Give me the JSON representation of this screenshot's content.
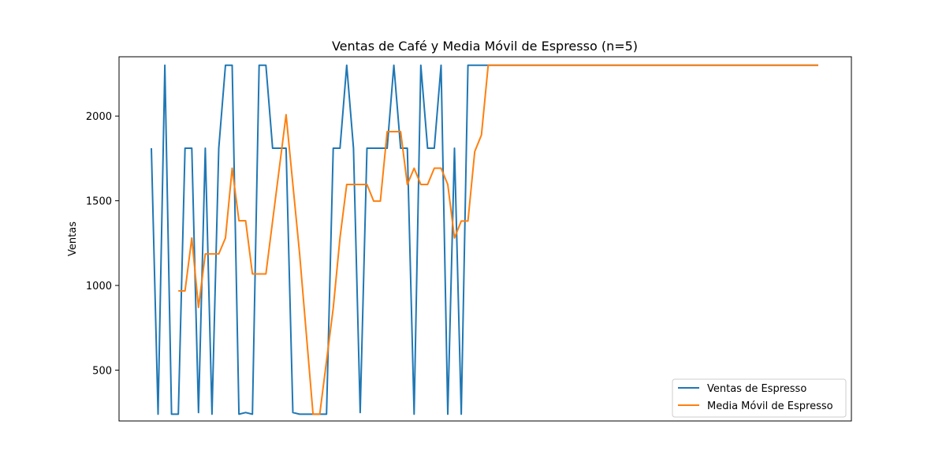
{
  "chart_data": {
    "type": "line",
    "title": "Ventas de Café y Media Móvil de Espresso (n=5)",
    "xlabel": "",
    "ylabel": "Ventas",
    "ylim": [
      200,
      2350
    ],
    "yticks": [
      500,
      1000,
      1500,
      2000
    ],
    "grid": false,
    "legend_position": "lower-right",
    "series": [
      {
        "name": "Ventas de Espresso",
        "color": "#1f77b4",
        "x": [
          0,
          1,
          2,
          3,
          4,
          5,
          6,
          7,
          8,
          9,
          10,
          11,
          12,
          13,
          14,
          15,
          16,
          17,
          18,
          19,
          20,
          21,
          22,
          23,
          24,
          25,
          26,
          27,
          28,
          29,
          30,
          31,
          32,
          33,
          34,
          35,
          36,
          37,
          38,
          39,
          40,
          41,
          42,
          43,
          44,
          45,
          46,
          47,
          48,
          49,
          50,
          51,
          52,
          53,
          54,
          55,
          56,
          57,
          58,
          59,
          60,
          61,
          62,
          63,
          64,
          65,
          66,
          67,
          68,
          69,
          70,
          71,
          72,
          73,
          74,
          75,
          76,
          77,
          78,
          79,
          80,
          81,
          82,
          83,
          84,
          85,
          86,
          87,
          88,
          89,
          90,
          91,
          92,
          93,
          94,
          95,
          96,
          97,
          98,
          99
        ],
        "values": [
          1810,
          240,
          2300,
          240,
          240,
          1810,
          1810,
          250,
          1810,
          240,
          1810,
          2300,
          2300,
          240,
          250,
          240,
          2300,
          2300,
          1810,
          1810,
          1810,
          250,
          240,
          240,
          240,
          240,
          240,
          1810,
          1810,
          2300,
          1810,
          250,
          1810,
          1810,
          1810,
          1810,
          2300,
          1810,
          1810,
          240,
          2300,
          1810,
          1810,
          2300,
          240,
          1810,
          240,
          2300,
          2300,
          2300,
          2300,
          2300,
          2300,
          2300,
          2300,
          2300,
          2300,
          2300,
          2300,
          2300,
          2300,
          2300,
          2300,
          2300,
          2300,
          2300,
          2300,
          2300,
          2300,
          2300,
          2300,
          2300,
          2300,
          2300,
          2300,
          2300,
          2300,
          2300,
          2300,
          2300,
          2300,
          2300,
          2300,
          2300,
          2300,
          2300,
          2300,
          2300,
          2300,
          2300,
          2300,
          2300,
          2300,
          2300,
          2300,
          2300,
          2300,
          2300,
          2300,
          2300
        ]
      },
      {
        "name": "Media Móvil de Espresso",
        "color": "#ff7f0e",
        "x": [
          4,
          5,
          6,
          7,
          8,
          9,
          10,
          11,
          12,
          13,
          14,
          15,
          16,
          17,
          20,
          22,
          24,
          25,
          27,
          28,
          29,
          30,
          31,
          32,
          33,
          34,
          35,
          36,
          37,
          38,
          39,
          40,
          41,
          42,
          43,
          44,
          45,
          46,
          47,
          48,
          49,
          50,
          51,
          52,
          53,
          54,
          55,
          56,
          57,
          58,
          59,
          60,
          61,
          62,
          63,
          64,
          65,
          66,
          67,
          68,
          69,
          70,
          71,
          72,
          73,
          74,
          75,
          76,
          77,
          78,
          79,
          80,
          81,
          82,
          83,
          84,
          85,
          86,
          87,
          88,
          89,
          90,
          91,
          92,
          93,
          94,
          95,
          96,
          97,
          98,
          99
        ],
        "values": [
          968,
          968,
          1280,
          870,
          1186,
          1186,
          1186,
          1280,
          1692,
          1382,
          1382,
          1068,
          1068,
          1068,
          2008,
          1190,
          240,
          240,
          866,
          1282,
          1596,
          1596,
          1596,
          1596,
          1498,
          1498,
          1908,
          1908,
          1908,
          1596,
          1692,
          1596,
          1596,
          1692,
          1692,
          1596,
          1280,
          1380,
          1380,
          1790,
          1888,
          2300,
          2300,
          2300,
          2300,
          2300,
          2300,
          2300,
          2300,
          2300,
          2300,
          2300,
          2300,
          2300,
          2300,
          2300,
          2300,
          2300,
          2300,
          2300,
          2300,
          2300,
          2300,
          2300,
          2300,
          2300,
          2300,
          2300,
          2300,
          2300,
          2300,
          2300,
          2300,
          2300,
          2300,
          2300,
          2300,
          2300,
          2300,
          2300,
          2300,
          2300,
          2300,
          2300,
          2300,
          2300,
          2300,
          2300,
          2300,
          2300,
          2300
        ]
      }
    ]
  }
}
